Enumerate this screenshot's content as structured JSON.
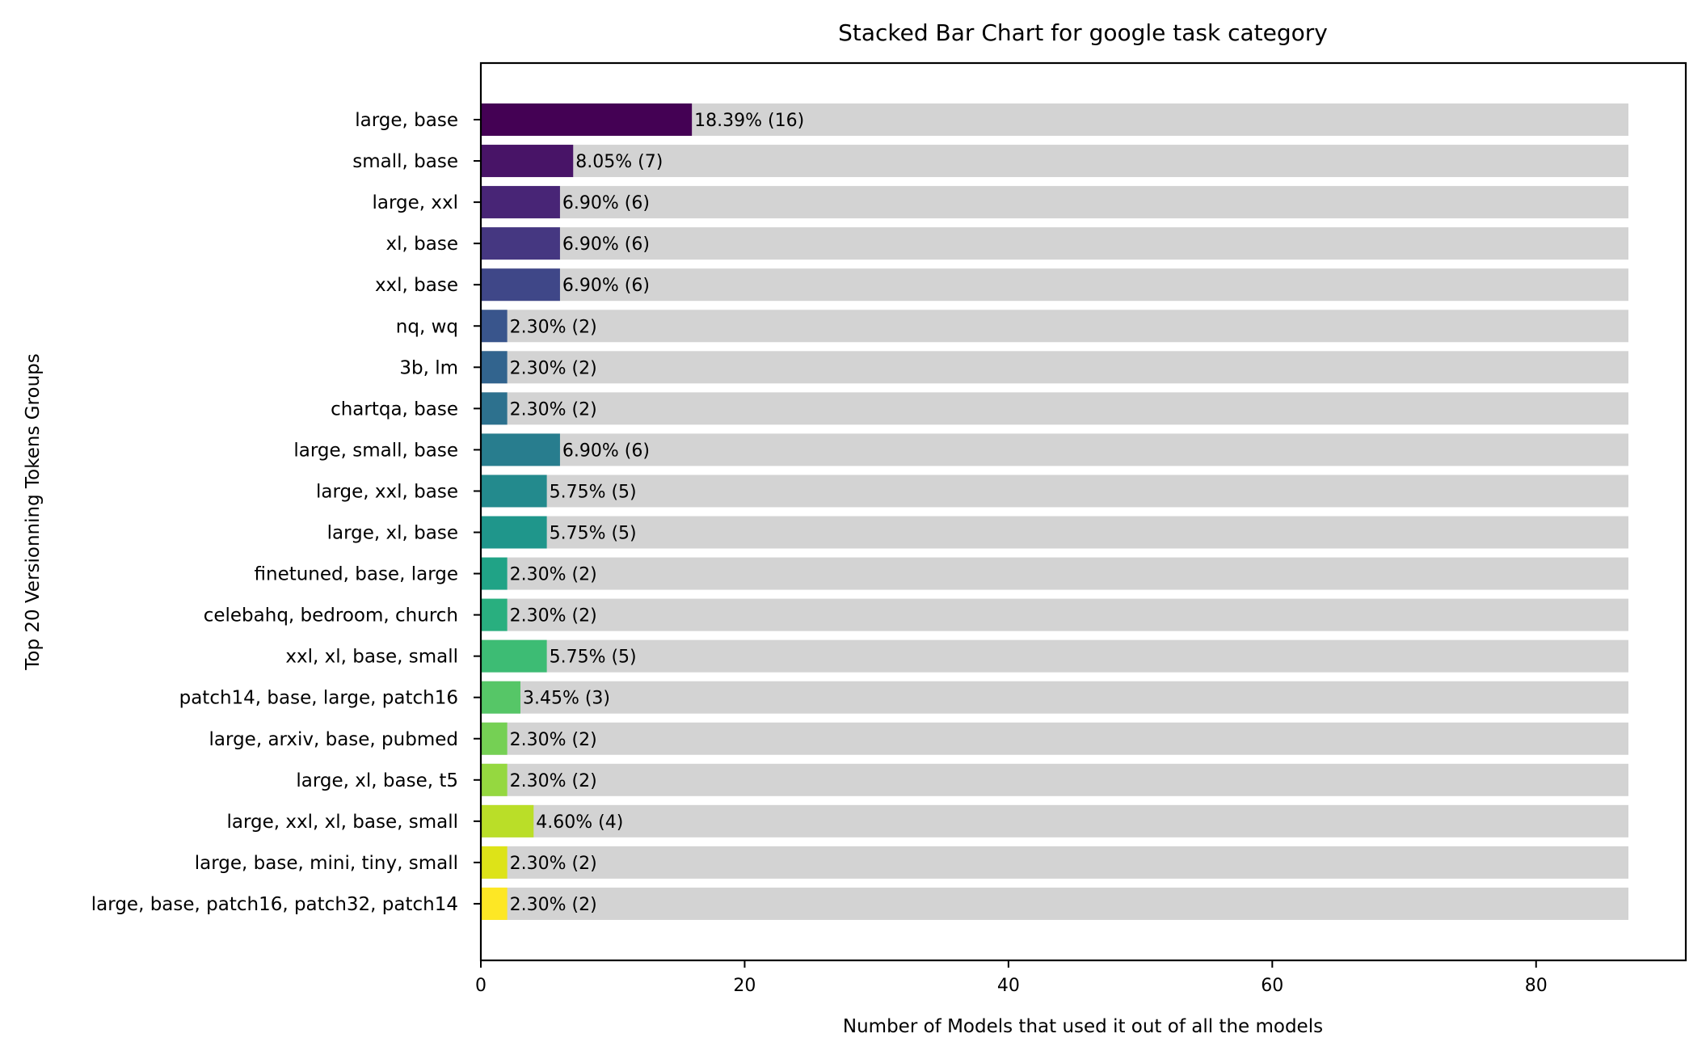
{
  "chart_data": {
    "type": "bar",
    "orientation": "horizontal",
    "stacked": true,
    "title": "Stacked Bar Chart for google task category",
    "xlabel": "Number of Models that used it out of all the models",
    "ylabel": "Top 20 Versionning Tokens Groups",
    "xlim": [
      0,
      91.35
    ],
    "xticks": [
      0,
      20,
      40,
      60,
      80
    ],
    "total": 87,
    "background_color": "#d3d3d3",
    "grid": false,
    "legend": "none",
    "categories": [
      "large, base",
      "small, base",
      "large, xxl",
      "xl, base",
      "xxl, base",
      "nq, wq",
      "3b, lm",
      "chartqa, base",
      "large, small, base",
      "large, xxl, base",
      "large, xl, base",
      "finetuned, base, large",
      "celebahq, bedroom, church",
      "xxl, xl, base, small",
      "patch14, base, large, patch16",
      "large, arxiv, base, pubmed",
      "large, xl, base, t5",
      "large, xxl, xl, base, small",
      "large, base, mini, tiny, small",
      "large, base, patch16, patch32, patch14"
    ],
    "values": [
      16,
      7,
      6,
      6,
      6,
      2,
      2,
      2,
      6,
      5,
      5,
      2,
      2,
      5,
      3,
      2,
      2,
      4,
      2,
      2
    ],
    "labels": [
      "18.39% (16)",
      "8.05% (7)",
      "6.90% (6)",
      "6.90% (6)",
      "6.90% (6)",
      "2.30% (2)",
      "2.30% (2)",
      "2.30% (2)",
      "6.90% (6)",
      "5.75% (5)",
      "5.75% (5)",
      "2.30% (2)",
      "2.30% (2)",
      "5.75% (5)",
      "3.45% (3)",
      "2.30% (2)",
      "2.30% (2)",
      "4.60% (4)",
      "2.30% (2)",
      "2.30% (2)"
    ],
    "colors": [
      "#440154",
      "#481467",
      "#482576",
      "#453781",
      "#3f4788",
      "#39558c",
      "#32648e",
      "#2d718e",
      "#287d8e",
      "#238a8d",
      "#1f968b",
      "#20a386",
      "#29af7f",
      "#3dbc74",
      "#56c667",
      "#75d054",
      "#95d840",
      "#bade28",
      "#dde318",
      "#fde725"
    ]
  }
}
